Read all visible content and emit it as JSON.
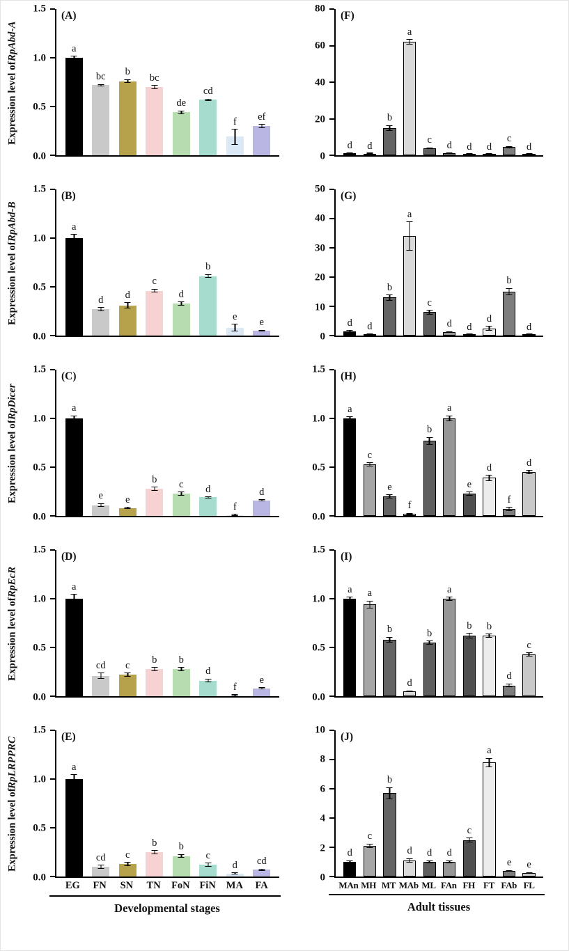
{
  "figure": {
    "left_axis_title": "Developmental stages",
    "right_axis_title": "Adult tissues",
    "stage_categories": [
      "EG",
      "FN",
      "SN",
      "TN",
      "FoN",
      "FiN",
      "MA",
      "FA"
    ],
    "tissue_categories": [
      "MAn",
      "MH",
      "MT",
      "MAb",
      "ML",
      "FAn",
      "FH",
      "FT",
      "FAb",
      "FL"
    ],
    "stage_colors": [
      "#000000",
      "#c9c9c9",
      "#b5a24b",
      "#f7d2d2",
      "#b7dcb0",
      "#a6dcce",
      "#dbe9f7",
      "#b9b6e4"
    ],
    "tissue_colors": [
      "#000000",
      "#a6a6a6",
      "#636363",
      "#d9d9d9",
      "#5f5f5f",
      "#969696",
      "#4f4f4f",
      "#ededed",
      "#7d7d7d",
      "#c9c9c9"
    ],
    "axis_color": "#000000",
    "background_color": "#ffffff"
  },
  "chart_data": [
    {
      "id": "A",
      "tag": "(A)",
      "type": "bar",
      "column": "left",
      "show_x_labels": false,
      "ylabel_prefix": "Expression level of ",
      "gene": "RpAbd-A",
      "ymax": 1.5,
      "yticks": [
        {
          "v": 0,
          "t": "0.0"
        },
        {
          "v": 0.5,
          "t": "0.5"
        },
        {
          "v": 1.0,
          "t": "1.0"
        },
        {
          "v": 1.5,
          "t": "1.5"
        }
      ],
      "values": [
        1.0,
        0.72,
        0.76,
        0.7,
        0.44,
        0.57,
        0.19,
        0.3
      ],
      "errors": [
        0.02,
        0.01,
        0.02,
        0.02,
        0.02,
        0.01,
        0.08,
        0.02
      ],
      "letters": [
        "a",
        "bc",
        "b",
        "bc",
        "de",
        "cd",
        "f",
        "ef"
      ]
    },
    {
      "id": "B",
      "tag": "(B)",
      "type": "bar",
      "column": "left",
      "show_x_labels": false,
      "ylabel_prefix": "Expression level of ",
      "gene": "RpAbd-B",
      "ymax": 1.5,
      "yticks": [
        {
          "v": 0,
          "t": "0.0"
        },
        {
          "v": 0.5,
          "t": "0.5"
        },
        {
          "v": 1.0,
          "t": "1.0"
        },
        {
          "v": 1.5,
          "t": "1.5"
        }
      ],
      "values": [
        1.0,
        0.27,
        0.31,
        0.46,
        0.33,
        0.61,
        0.08,
        0.05
      ],
      "errors": [
        0.04,
        0.02,
        0.03,
        0.02,
        0.02,
        0.02,
        0.04,
        0.01
      ],
      "letters": [
        "a",
        "d",
        "d",
        "c",
        "d",
        "b",
        "e",
        "e"
      ]
    },
    {
      "id": "C",
      "tag": "(C)",
      "type": "bar",
      "column": "left",
      "show_x_labels": false,
      "ylabel_prefix": "Expression level of ",
      "gene": "RpDicer",
      "ymax": 1.5,
      "yticks": [
        {
          "v": 0,
          "t": "0.0"
        },
        {
          "v": 0.5,
          "t": "0.5"
        },
        {
          "v": 1.0,
          "t": "1.0"
        },
        {
          "v": 1.5,
          "t": "1.5"
        }
      ],
      "values": [
        1.0,
        0.11,
        0.08,
        0.28,
        0.23,
        0.19,
        0.01,
        0.16
      ],
      "errors": [
        0.03,
        0.02,
        0.01,
        0.02,
        0.02,
        0.01,
        0.01,
        0.01
      ],
      "letters": [
        "a",
        "e",
        "e",
        "b",
        "c",
        "d",
        "f",
        "d"
      ]
    },
    {
      "id": "D",
      "tag": "(D)",
      "type": "bar",
      "column": "left",
      "show_x_labels": false,
      "ylabel_prefix": "Expression level of ",
      "gene": "RpEcR",
      "ymax": 1.5,
      "yticks": [
        {
          "v": 0,
          "t": "0.0"
        },
        {
          "v": 0.5,
          "t": "0.5"
        },
        {
          "v": 1.0,
          "t": "1.0"
        },
        {
          "v": 1.5,
          "t": "1.5"
        }
      ],
      "values": [
        1.0,
        0.21,
        0.22,
        0.28,
        0.28,
        0.16,
        0.01,
        0.08
      ],
      "errors": [
        0.05,
        0.03,
        0.02,
        0.02,
        0.02,
        0.02,
        0.01,
        0.01
      ],
      "letters": [
        "a",
        "cd",
        "c",
        "b",
        "b",
        "d",
        "f",
        "e"
      ]
    },
    {
      "id": "E",
      "tag": "(E)",
      "type": "bar",
      "column": "left",
      "show_x_labels": true,
      "ylabel_prefix": "Expression level of ",
      "gene": "RpLRPPRC",
      "ymax": 1.5,
      "yticks": [
        {
          "v": 0,
          "t": "0.0"
        },
        {
          "v": 0.5,
          "t": "0.5"
        },
        {
          "v": 1.0,
          "t": "1.0"
        },
        {
          "v": 1.5,
          "t": "1.5"
        }
      ],
      "values": [
        1.0,
        0.1,
        0.13,
        0.25,
        0.21,
        0.12,
        0.03,
        0.07
      ],
      "errors": [
        0.05,
        0.02,
        0.02,
        0.02,
        0.02,
        0.02,
        0.01,
        0.01
      ],
      "letters": [
        "a",
        "cd",
        "c",
        "b",
        "b",
        "c",
        "d",
        "cd"
      ]
    },
    {
      "id": "F",
      "tag": "(F)",
      "type": "bar",
      "column": "right",
      "show_x_labels": false,
      "ylabel_prefix": "",
      "gene": null,
      "ymax": 80,
      "yticks": [
        {
          "v": 0,
          "t": "0"
        },
        {
          "v": 20,
          "t": "20"
        },
        {
          "v": 40,
          "t": "40"
        },
        {
          "v": 60,
          "t": "60"
        },
        {
          "v": 80,
          "t": "80"
        }
      ],
      "values": [
        1.0,
        0.8,
        15,
        62,
        3.8,
        1.0,
        0.5,
        0.5,
        4.5,
        0.5
      ],
      "errors": [
        0.2,
        0.2,
        1.5,
        1.5,
        0.5,
        0.3,
        0.1,
        0.1,
        0.5,
        0.1
      ],
      "letters": [
        "d",
        "d",
        "b",
        "a",
        "c",
        "d",
        "d",
        "d",
        "c",
        "d"
      ]
    },
    {
      "id": "G",
      "tag": "(G)",
      "type": "bar",
      "column": "right",
      "show_x_labels": false,
      "ylabel_prefix": "",
      "gene": null,
      "ymax": 50,
      "yticks": [
        {
          "v": 0,
          "t": "0"
        },
        {
          "v": 10,
          "t": "10"
        },
        {
          "v": 20,
          "t": "20"
        },
        {
          "v": 30,
          "t": "30"
        },
        {
          "v": 40,
          "t": "40"
        },
        {
          "v": 50,
          "t": "50"
        }
      ],
      "values": [
        1.5,
        0.5,
        13,
        34,
        8,
        1.2,
        0.3,
        2.5,
        15,
        0.3
      ],
      "errors": [
        0.3,
        0.2,
        1.0,
        5.0,
        0.8,
        0.3,
        0.1,
        0.8,
        1.2,
        0.1
      ],
      "letters": [
        "d",
        "d",
        "b",
        "a",
        "c",
        "d",
        "d",
        "d",
        "b",
        "d"
      ]
    },
    {
      "id": "H",
      "tag": "(H)",
      "type": "bar",
      "column": "right",
      "show_x_labels": false,
      "ylabel_prefix": "",
      "gene": null,
      "ymax": 1.5,
      "yticks": [
        {
          "v": 0,
          "t": "0.0"
        },
        {
          "v": 0.5,
          "t": "0.5"
        },
        {
          "v": 1.0,
          "t": "1.0"
        },
        {
          "v": 1.5,
          "t": "1.5"
        }
      ],
      "values": [
        1.0,
        0.53,
        0.2,
        0.02,
        0.77,
        1.0,
        0.23,
        0.39,
        0.07,
        0.45
      ],
      "errors": [
        0.02,
        0.02,
        0.02,
        0.01,
        0.04,
        0.03,
        0.02,
        0.03,
        0.02,
        0.02
      ],
      "letters": [
        "a",
        "c",
        "e",
        "f",
        "b",
        "a",
        "e",
        "d",
        "f",
        "d"
      ]
    },
    {
      "id": "I",
      "tag": "(I)",
      "type": "bar",
      "column": "right",
      "show_x_labels": false,
      "ylabel_prefix": "",
      "gene": null,
      "ymax": 1.5,
      "yticks": [
        {
          "v": 0,
          "t": "0.0"
        },
        {
          "v": 0.5,
          "t": "0.5"
        },
        {
          "v": 1.0,
          "t": "1.0"
        },
        {
          "v": 1.5,
          "t": "1.5"
        }
      ],
      "values": [
        1.0,
        0.94,
        0.58,
        0.05,
        0.55,
        1.0,
        0.62,
        0.62,
        0.11,
        0.43
      ],
      "errors": [
        0.02,
        0.04,
        0.03,
        0.01,
        0.02,
        0.02,
        0.03,
        0.02,
        0.02,
        0.02
      ],
      "letters": [
        "a",
        "a",
        "b",
        "d",
        "b",
        "a",
        "b",
        "b",
        "d",
        "c"
      ]
    },
    {
      "id": "J",
      "tag": "(J)",
      "type": "bar",
      "column": "right",
      "show_x_labels": true,
      "ylabel_prefix": "",
      "gene": null,
      "ymax": 10,
      "yticks": [
        {
          "v": 0,
          "t": "0"
        },
        {
          "v": 2,
          "t": "2"
        },
        {
          "v": 4,
          "t": "4"
        },
        {
          "v": 6,
          "t": "6"
        },
        {
          "v": 8,
          "t": "8"
        },
        {
          "v": 10,
          "t": "10"
        }
      ],
      "values": [
        1.0,
        2.1,
        5.7,
        1.1,
        1.0,
        1.0,
        2.5,
        7.8,
        0.4,
        0.25
      ],
      "errors": [
        0.1,
        0.15,
        0.4,
        0.15,
        0.1,
        0.1,
        0.15,
        0.3,
        0.05,
        0.05
      ],
      "letters": [
        "d",
        "c",
        "b",
        "d",
        "d",
        "d",
        "c",
        "a",
        "e",
        "e"
      ]
    }
  ]
}
